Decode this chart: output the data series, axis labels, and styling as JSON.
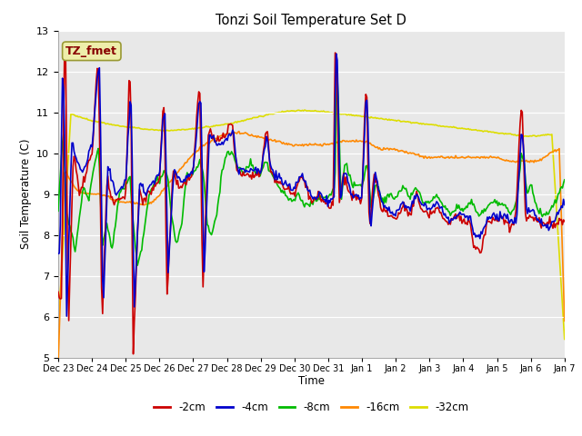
{
  "title": "Tonzi Soil Temperature Set D",
  "xlabel": "Time",
  "ylabel": "Soil Temperature (C)",
  "ylim": [
    5.0,
    13.0
  ],
  "yticks": [
    5.0,
    6.0,
    7.0,
    8.0,
    9.0,
    10.0,
    11.0,
    12.0,
    13.0
  ],
  "colors": {
    "-2cm": "#cc0000",
    "-4cm": "#0000cc",
    "-8cm": "#00bb00",
    "-16cm": "#ff8800",
    "-32cm": "#dddd00"
  },
  "legend_label": "TZ_fmet",
  "legend_box_facecolor": "#eeeeaa",
  "legend_box_edgecolor": "#999933",
  "legend_text_color": "#880000",
  "background_color": "#e8e8e8",
  "x_tick_labels": [
    "Dec 23",
    "Dec 24",
    "Dec 25",
    "Dec 26",
    "Dec 27",
    "Dec 28",
    "Dec 29",
    "Dec 30",
    "Dec 31",
    "Jan 1",
    "Jan 2",
    "Jan 3",
    "Jan 4",
    "Jan 5",
    "Jan 6",
    "Jan 7"
  ],
  "line_width": 1.2
}
